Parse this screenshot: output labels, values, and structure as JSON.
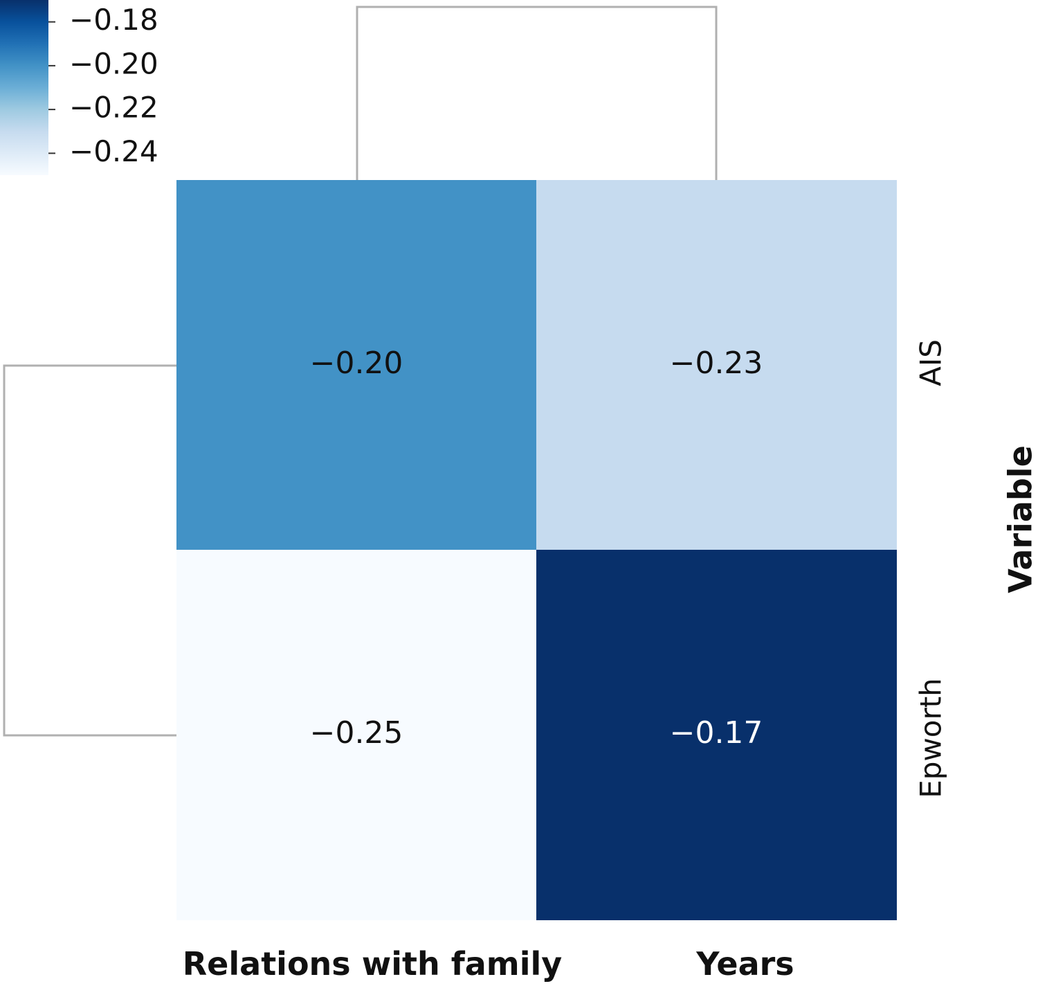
{
  "chart_data": {
    "type": "heatmap",
    "title": "",
    "xlabel": "",
    "ylabel": "Variable",
    "columns": [
      "Relations with family",
      "Years"
    ],
    "rows": [
      "AIS",
      "Epworth"
    ],
    "values": [
      [
        -0.2,
        -0.23
      ],
      [
        -0.25,
        -0.17
      ]
    ],
    "cell_labels": [
      [
        "−0.20",
        "−0.23"
      ],
      [
        "−0.25",
        "−0.17"
      ]
    ],
    "colormap": "Blues",
    "color_low": "#f7fbff",
    "color_high": "#08306b",
    "colorbar": {
      "placement": "top-left",
      "range": [
        -0.25,
        -0.17
      ],
      "ticks": [
        -0.18,
        -0.2,
        -0.22,
        -0.24
      ],
      "tick_labels": [
        "−0.18",
        "−0.20",
        "−0.22",
        "−0.24"
      ]
    },
    "dendrogram": {
      "rows": true,
      "columns": true
    }
  }
}
